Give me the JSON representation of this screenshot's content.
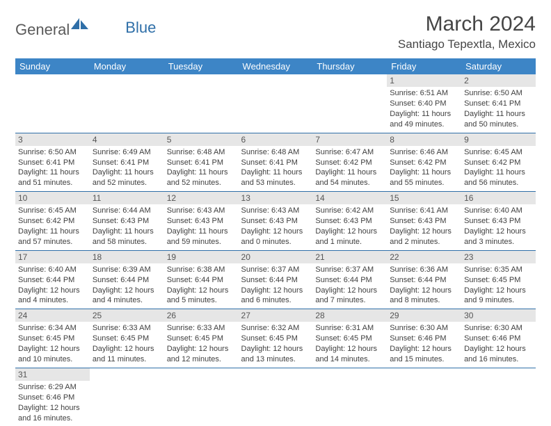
{
  "logo": {
    "part1": "General",
    "part2": "Blue"
  },
  "title": "March 2024",
  "location": "Santiago Tepextla, Mexico",
  "colors": {
    "header_bg": "#3d85c6",
    "header_text": "#ffffff",
    "row_divider": "#2f6fa8",
    "daynum_bg": "#e6e6e6",
    "logo_gray": "#5a5a5a",
    "logo_blue": "#2f6fa8",
    "title_color": "#454545",
    "body_text": "#3e3e3e"
  },
  "weekdays": [
    "Sunday",
    "Monday",
    "Tuesday",
    "Wednesday",
    "Thursday",
    "Friday",
    "Saturday"
  ],
  "weeks": [
    [
      {
        "n": "",
        "sr": "",
        "ss": "",
        "dl": ""
      },
      {
        "n": "",
        "sr": "",
        "ss": "",
        "dl": ""
      },
      {
        "n": "",
        "sr": "",
        "ss": "",
        "dl": ""
      },
      {
        "n": "",
        "sr": "",
        "ss": "",
        "dl": ""
      },
      {
        "n": "",
        "sr": "",
        "ss": "",
        "dl": ""
      },
      {
        "n": "1",
        "sr": "Sunrise: 6:51 AM",
        "ss": "Sunset: 6:40 PM",
        "dl": "Daylight: 11 hours and 49 minutes."
      },
      {
        "n": "2",
        "sr": "Sunrise: 6:50 AM",
        "ss": "Sunset: 6:41 PM",
        "dl": "Daylight: 11 hours and 50 minutes."
      }
    ],
    [
      {
        "n": "3",
        "sr": "Sunrise: 6:50 AM",
        "ss": "Sunset: 6:41 PM",
        "dl": "Daylight: 11 hours and 51 minutes."
      },
      {
        "n": "4",
        "sr": "Sunrise: 6:49 AM",
        "ss": "Sunset: 6:41 PM",
        "dl": "Daylight: 11 hours and 52 minutes."
      },
      {
        "n": "5",
        "sr": "Sunrise: 6:48 AM",
        "ss": "Sunset: 6:41 PM",
        "dl": "Daylight: 11 hours and 52 minutes."
      },
      {
        "n": "6",
        "sr": "Sunrise: 6:48 AM",
        "ss": "Sunset: 6:41 PM",
        "dl": "Daylight: 11 hours and 53 minutes."
      },
      {
        "n": "7",
        "sr": "Sunrise: 6:47 AM",
        "ss": "Sunset: 6:42 PM",
        "dl": "Daylight: 11 hours and 54 minutes."
      },
      {
        "n": "8",
        "sr": "Sunrise: 6:46 AM",
        "ss": "Sunset: 6:42 PM",
        "dl": "Daylight: 11 hours and 55 minutes."
      },
      {
        "n": "9",
        "sr": "Sunrise: 6:45 AM",
        "ss": "Sunset: 6:42 PM",
        "dl": "Daylight: 11 hours and 56 minutes."
      }
    ],
    [
      {
        "n": "10",
        "sr": "Sunrise: 6:45 AM",
        "ss": "Sunset: 6:42 PM",
        "dl": "Daylight: 11 hours and 57 minutes."
      },
      {
        "n": "11",
        "sr": "Sunrise: 6:44 AM",
        "ss": "Sunset: 6:43 PM",
        "dl": "Daylight: 11 hours and 58 minutes."
      },
      {
        "n": "12",
        "sr": "Sunrise: 6:43 AM",
        "ss": "Sunset: 6:43 PM",
        "dl": "Daylight: 11 hours and 59 minutes."
      },
      {
        "n": "13",
        "sr": "Sunrise: 6:43 AM",
        "ss": "Sunset: 6:43 PM",
        "dl": "Daylight: 12 hours and 0 minutes."
      },
      {
        "n": "14",
        "sr": "Sunrise: 6:42 AM",
        "ss": "Sunset: 6:43 PM",
        "dl": "Daylight: 12 hours and 1 minute."
      },
      {
        "n": "15",
        "sr": "Sunrise: 6:41 AM",
        "ss": "Sunset: 6:43 PM",
        "dl": "Daylight: 12 hours and 2 minutes."
      },
      {
        "n": "16",
        "sr": "Sunrise: 6:40 AM",
        "ss": "Sunset: 6:43 PM",
        "dl": "Daylight: 12 hours and 3 minutes."
      }
    ],
    [
      {
        "n": "17",
        "sr": "Sunrise: 6:40 AM",
        "ss": "Sunset: 6:44 PM",
        "dl": "Daylight: 12 hours and 4 minutes."
      },
      {
        "n": "18",
        "sr": "Sunrise: 6:39 AM",
        "ss": "Sunset: 6:44 PM",
        "dl": "Daylight: 12 hours and 4 minutes."
      },
      {
        "n": "19",
        "sr": "Sunrise: 6:38 AM",
        "ss": "Sunset: 6:44 PM",
        "dl": "Daylight: 12 hours and 5 minutes."
      },
      {
        "n": "20",
        "sr": "Sunrise: 6:37 AM",
        "ss": "Sunset: 6:44 PM",
        "dl": "Daylight: 12 hours and 6 minutes."
      },
      {
        "n": "21",
        "sr": "Sunrise: 6:37 AM",
        "ss": "Sunset: 6:44 PM",
        "dl": "Daylight: 12 hours and 7 minutes."
      },
      {
        "n": "22",
        "sr": "Sunrise: 6:36 AM",
        "ss": "Sunset: 6:44 PM",
        "dl": "Daylight: 12 hours and 8 minutes."
      },
      {
        "n": "23",
        "sr": "Sunrise: 6:35 AM",
        "ss": "Sunset: 6:45 PM",
        "dl": "Daylight: 12 hours and 9 minutes."
      }
    ],
    [
      {
        "n": "24",
        "sr": "Sunrise: 6:34 AM",
        "ss": "Sunset: 6:45 PM",
        "dl": "Daylight: 12 hours and 10 minutes."
      },
      {
        "n": "25",
        "sr": "Sunrise: 6:33 AM",
        "ss": "Sunset: 6:45 PM",
        "dl": "Daylight: 12 hours and 11 minutes."
      },
      {
        "n": "26",
        "sr": "Sunrise: 6:33 AM",
        "ss": "Sunset: 6:45 PM",
        "dl": "Daylight: 12 hours and 12 minutes."
      },
      {
        "n": "27",
        "sr": "Sunrise: 6:32 AM",
        "ss": "Sunset: 6:45 PM",
        "dl": "Daylight: 12 hours and 13 minutes."
      },
      {
        "n": "28",
        "sr": "Sunrise: 6:31 AM",
        "ss": "Sunset: 6:45 PM",
        "dl": "Daylight: 12 hours and 14 minutes."
      },
      {
        "n": "29",
        "sr": "Sunrise: 6:30 AM",
        "ss": "Sunset: 6:46 PM",
        "dl": "Daylight: 12 hours and 15 minutes."
      },
      {
        "n": "30",
        "sr": "Sunrise: 6:30 AM",
        "ss": "Sunset: 6:46 PM",
        "dl": "Daylight: 12 hours and 16 minutes."
      }
    ],
    [
      {
        "n": "31",
        "sr": "Sunrise: 6:29 AM",
        "ss": "Sunset: 6:46 PM",
        "dl": "Daylight: 12 hours and 16 minutes."
      },
      {
        "n": "",
        "sr": "",
        "ss": "",
        "dl": ""
      },
      {
        "n": "",
        "sr": "",
        "ss": "",
        "dl": ""
      },
      {
        "n": "",
        "sr": "",
        "ss": "",
        "dl": ""
      },
      {
        "n": "",
        "sr": "",
        "ss": "",
        "dl": ""
      },
      {
        "n": "",
        "sr": "",
        "ss": "",
        "dl": ""
      },
      {
        "n": "",
        "sr": "",
        "ss": "",
        "dl": ""
      }
    ]
  ]
}
